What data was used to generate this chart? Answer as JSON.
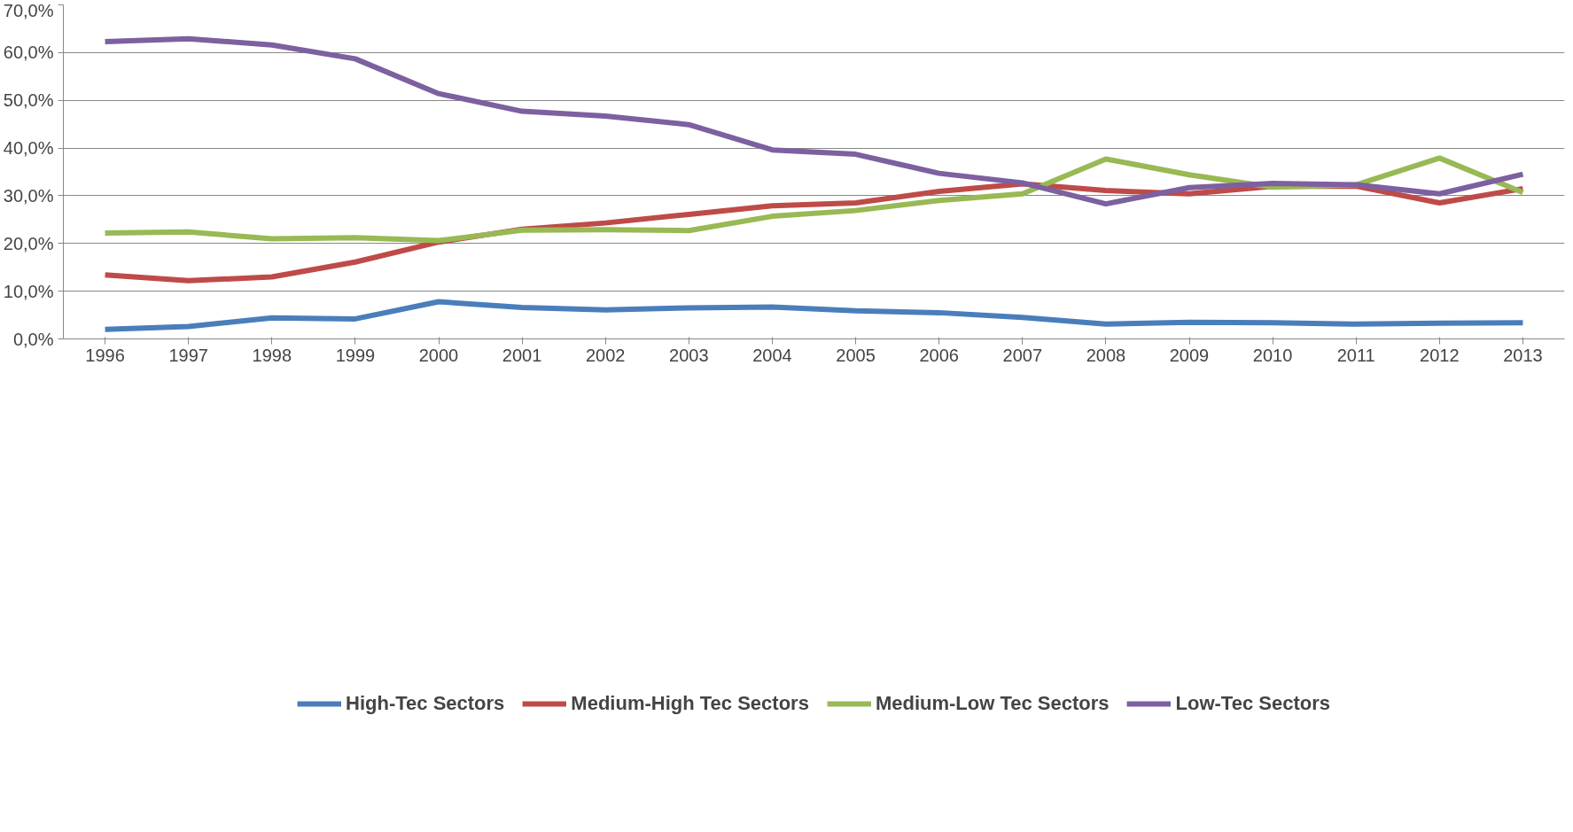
{
  "chart_data": {
    "type": "line",
    "categories": [
      "1996",
      "1997",
      "1998",
      "1999",
      "2000",
      "2001",
      "2002",
      "2003",
      "2004",
      "2005",
      "2006",
      "2007",
      "2008",
      "2009",
      "2010",
      "2011",
      "2012",
      "2013"
    ],
    "series": [
      {
        "name": "High-Tec Sectors",
        "color": "#4a7ebb",
        "values": [
          2.0,
          2.6,
          4.4,
          4.2,
          7.8,
          6.6,
          6.1,
          6.5,
          6.7,
          5.9,
          5.5,
          4.5,
          3.1,
          3.5,
          3.4,
          3.1,
          3.3,
          3.4
        ]
      },
      {
        "name": "Medium-High Tec Sectors",
        "color": "#be4b48",
        "values": [
          13.4,
          12.2,
          13.0,
          16.1,
          20.3,
          23.0,
          24.3,
          26.1,
          27.9,
          28.5,
          30.9,
          32.5,
          31.1,
          30.4,
          32.0,
          32.0,
          28.5,
          31.5
        ]
      },
      {
        "name": "Medium-Low Tec Sectors",
        "color": "#98b954",
        "values": [
          22.2,
          22.4,
          21.0,
          21.2,
          20.6,
          22.8,
          22.9,
          22.7,
          25.7,
          26.9,
          29.0,
          30.4,
          37.7,
          34.4,
          31.8,
          32.3,
          37.9,
          30.7
        ]
      },
      {
        "name": "Low-Tec Sectors",
        "color": "#7d60a0",
        "values": [
          62.3,
          62.9,
          61.6,
          58.7,
          51.4,
          47.7,
          46.7,
          44.9,
          39.6,
          38.7,
          34.7,
          32.7,
          28.3,
          31.7,
          32.6,
          32.3,
          30.4,
          34.5
        ]
      }
    ],
    "ylim": [
      0,
      70
    ],
    "yticks": [
      {
        "value": 0,
        "label": "0,0%"
      },
      {
        "value": 10,
        "label": "10,0%"
      },
      {
        "value": 20,
        "label": "20,0%"
      },
      {
        "value": 30,
        "label": "30,0%"
      },
      {
        "value": 40,
        "label": "40,0%"
      },
      {
        "value": 50,
        "label": "50,0%"
      },
      {
        "value": 60,
        "label": "60,0%"
      },
      {
        "value": 70,
        "label": "70,0%"
      }
    ],
    "grid": "y",
    "legend": "bottom",
    "marker": "none",
    "line_style": "solid"
  }
}
